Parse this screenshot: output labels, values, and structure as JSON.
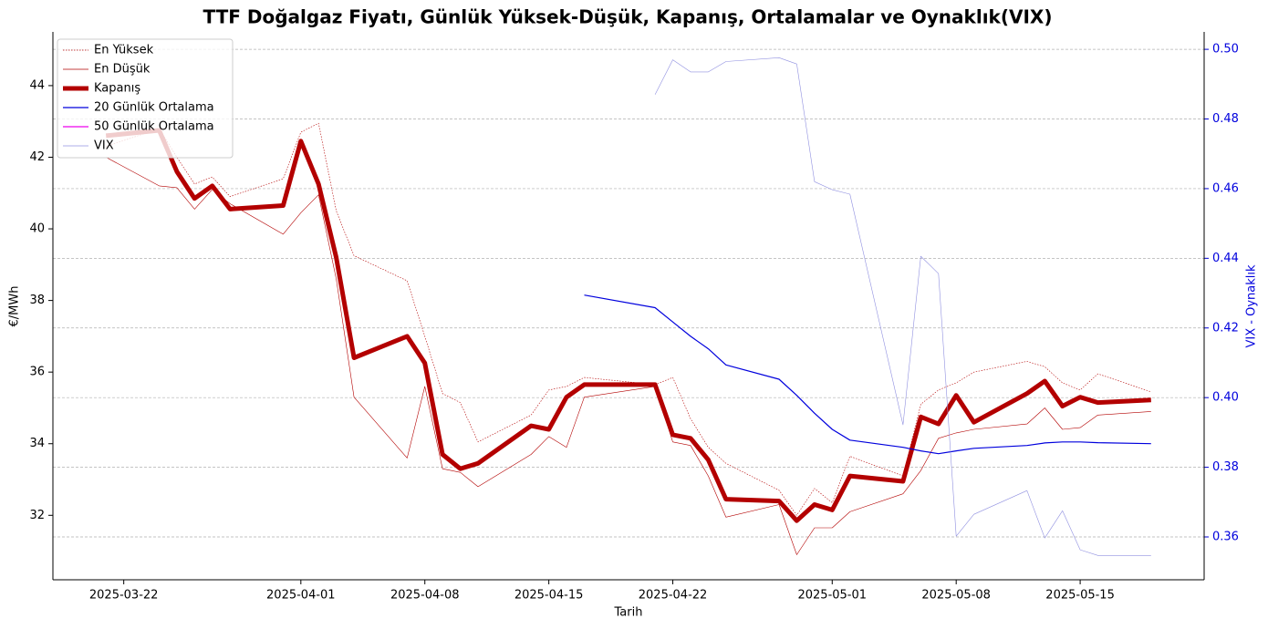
{
  "chart_data": {
    "type": "line",
    "title": "TTF Doğalgaz Fiyatı, Günlük Yüksek-Düşük, Kapanış, Ortalamalar ve Oynaklık(VIX)",
    "xlabel": "Tarih",
    "ylabel": "€/MWh",
    "y2label": "VIX - Oynaklık",
    "x": [
      "2025-03-21",
      "2025-03-24",
      "2025-03-25",
      "2025-03-26",
      "2025-03-27",
      "2025-03-28",
      "2025-03-31",
      "2025-04-01",
      "2025-04-02",
      "2025-04-03",
      "2025-04-04",
      "2025-04-07",
      "2025-04-08",
      "2025-04-09",
      "2025-04-10",
      "2025-04-11",
      "2025-04-14",
      "2025-04-15",
      "2025-04-16",
      "2025-04-17",
      "2025-04-21",
      "2025-04-22",
      "2025-04-23",
      "2025-04-24",
      "2025-04-25",
      "2025-04-28",
      "2025-04-29",
      "2025-04-30",
      "2025-05-01",
      "2025-05-02",
      "2025-05-05",
      "2025-05-06",
      "2025-05-07",
      "2025-05-08",
      "2025-05-09",
      "2025-05-12",
      "2025-05-13",
      "2025-05-14",
      "2025-05-15",
      "2025-05-16",
      "2025-05-19"
    ],
    "series": [
      {
        "name": "En Yüksek",
        "color": "#b30000",
        "linewidth": 0.6,
        "dash": "dotted",
        "values": [
          42.3,
          42.8,
          42.0,
          41.25,
          41.45,
          40.9,
          41.4,
          42.7,
          42.95,
          40.5,
          39.25,
          38.55,
          37.0,
          35.4,
          35.15,
          34.05,
          34.8,
          35.5,
          35.6,
          35.85,
          35.65,
          35.85,
          34.7,
          33.9,
          33.45,
          32.7,
          32.0,
          32.75,
          32.35,
          33.65,
          33.1,
          35.1,
          35.5,
          35.7,
          36.0,
          36.3,
          36.15,
          35.7,
          35.5,
          35.95,
          35.45
        ]
      },
      {
        "name": "En Düşük",
        "color": "#b30000",
        "linewidth": 0.6,
        "values": [
          42.0,
          41.2,
          41.15,
          40.55,
          41.1,
          40.7,
          39.85,
          40.45,
          40.95,
          38.6,
          35.3,
          33.6,
          35.6,
          33.3,
          33.2,
          32.8,
          33.7,
          34.2,
          33.9,
          35.3,
          35.6,
          34.05,
          33.95,
          33.1,
          31.95,
          32.3,
          30.9,
          31.65,
          31.65,
          32.1,
          32.6,
          33.25,
          34.15,
          34.3,
          34.4,
          34.55,
          35.0,
          34.4,
          34.45,
          34.8,
          34.9
        ]
      },
      {
        "name": "Kapanış",
        "color": "#b30000",
        "linewidth": 5,
        "values": [
          42.6,
          42.75,
          41.6,
          40.85,
          41.2,
          40.55,
          40.65,
          42.45,
          41.25,
          39.2,
          36.4,
          37.0,
          36.25,
          33.7,
          33.3,
          33.45,
          34.5,
          34.4,
          35.3,
          35.65,
          35.65,
          34.25,
          34.15,
          33.55,
          32.45,
          32.4,
          31.85,
          32.3,
          32.15,
          33.1,
          32.95,
          34.75,
          34.55,
          35.35,
          34.6,
          35.4,
          35.75,
          35.05,
          35.3,
          35.15,
          35.22
        ]
      },
      {
        "name": "20 Günlük Ortalama",
        "color": "#0000dd",
        "linewidth": 1.2,
        "values": [
          null,
          null,
          null,
          null,
          null,
          null,
          null,
          null,
          null,
          null,
          null,
          null,
          null,
          null,
          null,
          null,
          null,
          null,
          null,
          38.15,
          37.8,
          37.4,
          37.0,
          36.65,
          36.2,
          35.8,
          35.35,
          34.85,
          34.4,
          34.1,
          33.9,
          33.8,
          33.72,
          33.8,
          33.87,
          33.95,
          34.02,
          34.05,
          34.05,
          34.03,
          34.0
        ]
      },
      {
        "name": "50 Günlük Ortalama",
        "color": "#ee00ee",
        "linewidth": 1.2,
        "values": [
          null,
          null,
          null,
          null,
          null,
          null,
          null,
          null,
          null,
          null,
          null,
          null,
          null,
          null,
          null,
          null,
          null,
          null,
          null,
          null,
          null,
          null,
          null,
          null,
          null,
          null,
          null,
          null,
          null,
          null,
          null,
          null,
          null,
          null,
          null,
          null,
          null,
          null,
          null,
          null,
          null
        ]
      },
      {
        "name": "VIX",
        "color": "#9090e0",
        "linewidth": 0.6,
        "axis": "y2",
        "values": [
          null,
          null,
          null,
          null,
          null,
          null,
          null,
          null,
          null,
          null,
          null,
          null,
          null,
          null,
          null,
          null,
          null,
          null,
          null,
          null,
          0.487,
          0.497,
          0.4935,
          0.4935,
          0.4965,
          0.4976,
          0.4958,
          0.462,
          0.4597,
          0.4584,
          0.3922,
          0.4406,
          0.4356,
          0.3602,
          0.3665,
          0.3733,
          0.3597,
          0.3675,
          0.3563,
          0.3547,
          0.3547
        ]
      }
    ],
    "xlim": [
      "2025-03-18",
      "2025-05-22"
    ],
    "xticks": [
      "2025-03-22",
      "2025-04-01",
      "2025-04-08",
      "2025-04-15",
      "2025-04-22",
      "2025-05-01",
      "2025-05-08",
      "2025-05-15"
    ],
    "ylim": [
      30.2,
      45.5
    ],
    "yticks": [
      32,
      34,
      36,
      38,
      40,
      42,
      44
    ],
    "y2lim": [
      0.3477,
      0.505
    ],
    "y2ticks": [
      0.36,
      0.38,
      {
        "value": 0.4,
        "label": "0.40"
      },
      0.42,
      0.44,
      0.46,
      0.48,
      {
        "value": 0.5,
        "label": "0.50"
      }
    ],
    "y2color": "#0000dd",
    "grid": "y2",
    "legend": "upper left"
  }
}
